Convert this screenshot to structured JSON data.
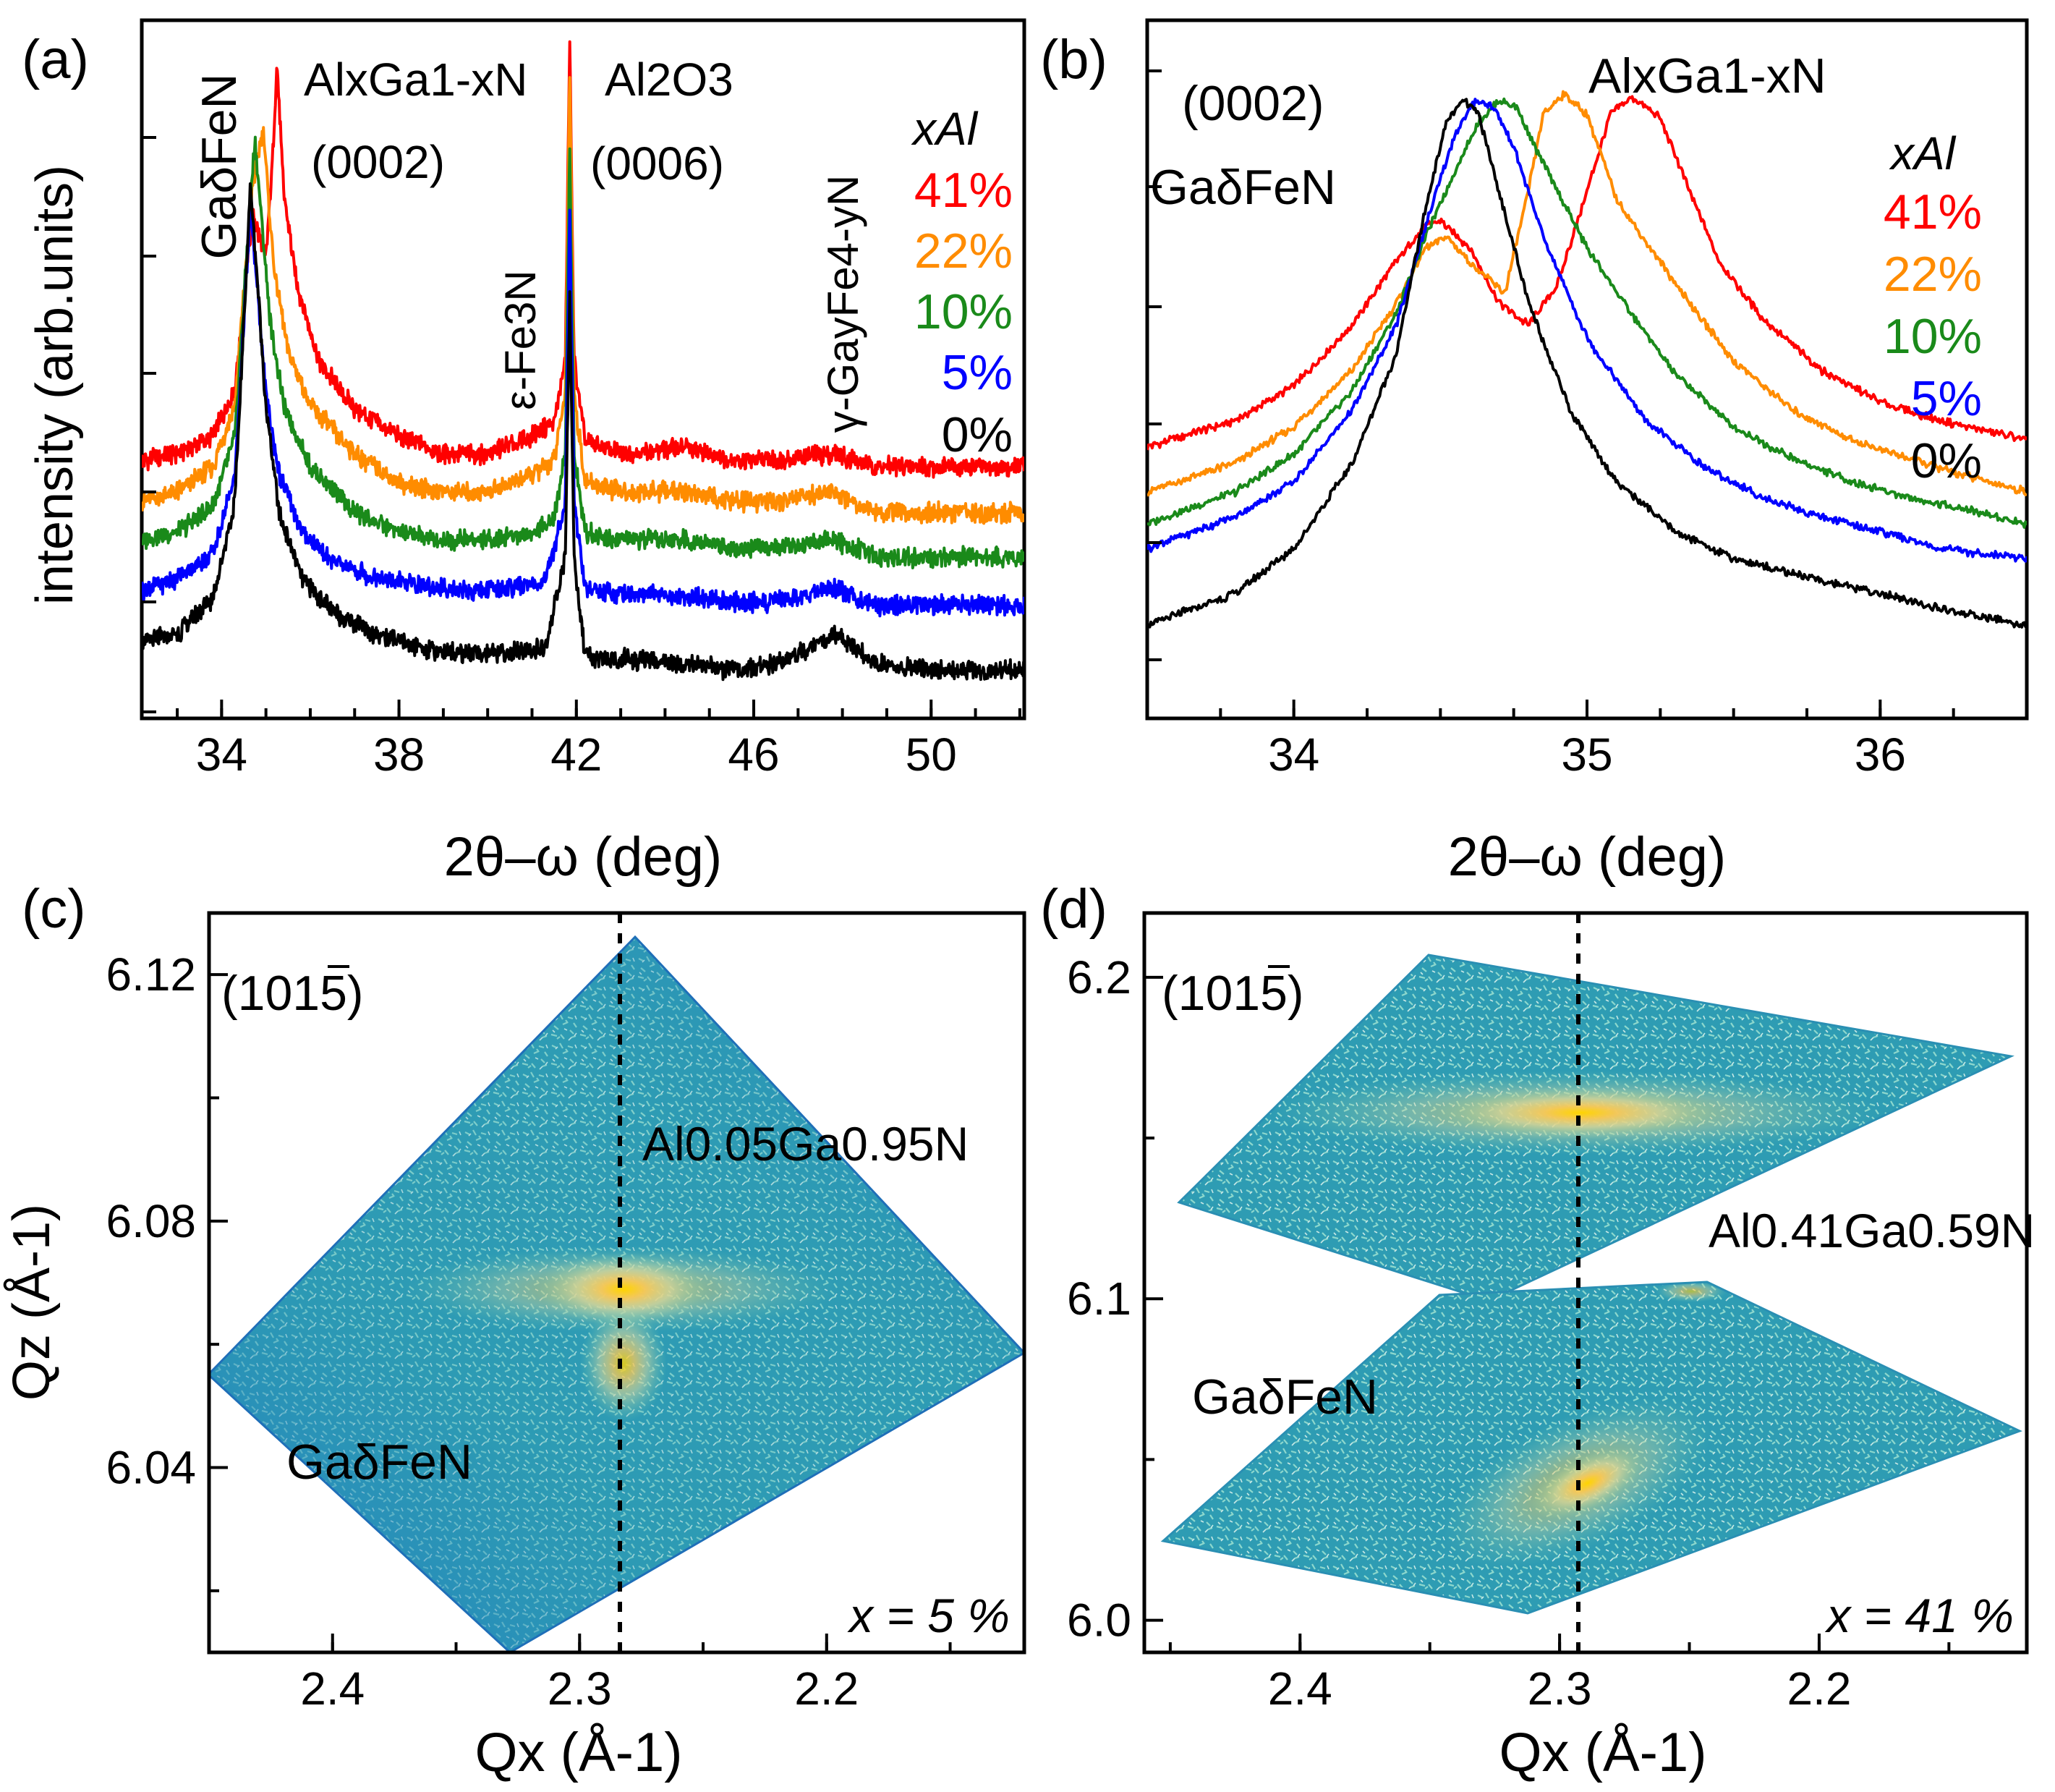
{
  "figure": {
    "panels": [
      {
        "label": "(a)",
        "peak_labels": [
          "GaδFeN",
          "AlxGa1-xN",
          "(0002)",
          "Al2O3",
          "(0006)",
          "ε-Fe3N",
          "γ-GayFe4-yN"
        ],
        "legend_title": "xAl",
        "legend_entries": [
          "41%",
          "22%",
          "10%",
          "5%",
          "0%"
        ]
      },
      {
        "label": "(b)",
        "peak_labels": [
          "(0002)",
          "GaδFeN",
          "AlxGa1-xN"
        ],
        "legend_title": "xAl",
        "legend_entries": [
          "41%",
          "22%",
          "10%",
          "5%",
          "0%"
        ]
      },
      {
        "label": "(c)",
        "peak_labels": [
          "(1015)",
          "Al0.05Ga0.95N",
          "GaδFeN"
        ],
        "composition": "x = 5 %"
      },
      {
        "label": "(d)",
        "peak_labels": [
          "(1015)",
          "Al0.41Ga0.59N",
          "GaδFeN"
        ],
        "composition": "x = 41 %"
      }
    ]
  },
  "chart_data": [
    {
      "id": "a",
      "type": "line",
      "xlabel": "2θ–ω (deg)",
      "ylabel": "intensity (arb.units)",
      "xlim": [
        32.2,
        52.1
      ],
      "xticks": [
        34,
        38,
        42,
        46,
        50
      ],
      "yscale": "log",
      "yticks_labeled": false,
      "series": [
        {
          "name": "41%",
          "color": "#ff0000",
          "x": [
            32.2,
            33.0,
            33.8,
            34.3,
            34.55,
            34.7,
            34.85,
            35.0,
            35.15,
            35.25,
            35.4,
            35.7,
            36.2,
            37.0,
            38.0,
            39.0,
            40.0,
            41.0,
            41.5,
            41.75,
            41.85,
            41.95,
            42.2,
            43.0,
            44.5,
            45.5,
            46.5,
            47.8,
            48.8,
            50.0,
            52.1
          ],
          "y": [
            14,
            15,
            18,
            30,
            100,
            190,
            150,
            120,
            340,
            950,
            240,
            90,
            40,
            24,
            18,
            15,
            15,
            18,
            21,
            40,
            1200,
            40,
            17,
            15,
            16,
            14,
            14,
            15,
            13,
            13,
            13
          ]
        },
        {
          "name": "22%",
          "color": "#ff8c00",
          "x": [
            32.2,
            33.0,
            33.8,
            34.3,
            34.55,
            34.7,
            34.85,
            34.95,
            35.05,
            35.2,
            35.5,
            36.0,
            37.0,
            38.0,
            39.0,
            40.0,
            41.0,
            41.5,
            41.75,
            41.85,
            41.95,
            42.2,
            43.0,
            44.5,
            45.5,
            46.5,
            47.8,
            48.8,
            50.0,
            52.1
          ],
          "y": [
            9,
            10,
            13,
            25,
            110,
            260,
            380,
            480,
            230,
            100,
            45,
            25,
            15,
            11,
            10,
            10,
            12,
            14,
            28,
            900,
            28,
            11,
            10,
            10,
            9,
            9,
            10,
            8,
            8,
            8
          ]
        },
        {
          "name": "10%",
          "color": "#1a8a1a",
          "x": [
            32.2,
            33.0,
            33.8,
            34.3,
            34.55,
            34.75,
            34.9,
            35.1,
            35.4,
            36.0,
            37.0,
            38.0,
            39.0,
            40.0,
            41.0,
            41.5,
            41.75,
            41.85,
            41.95,
            42.2,
            43.0,
            44.5,
            45.5,
            46.5,
            47.8,
            48.8,
            50.0,
            52.1
          ],
          "y": [
            6,
            6.5,
            8.5,
            18,
            110,
            420,
            180,
            60,
            25,
            13,
            8,
            6.5,
            6,
            6,
            6.5,
            7.5,
            15,
            420,
            15,
            6.5,
            6,
            6,
            5.5,
            5.5,
            6,
            5,
            5,
            5
          ]
        },
        {
          "name": "5%",
          "color": "#0000ff",
          "x": [
            32.2,
            33.0,
            33.8,
            34.3,
            34.5,
            34.65,
            34.8,
            35.0,
            35.3,
            35.8,
            36.5,
            37.5,
            38.5,
            39.5,
            40.5,
            41.3,
            41.75,
            41.85,
            41.95,
            42.2,
            43.0,
            44.5,
            45.5,
            46.5,
            47.8,
            48.8,
            50.0,
            52.1
          ],
          "y": [
            3.5,
            4,
            5.2,
            12,
            60,
            200,
            90,
            28,
            12,
            6.5,
            4.8,
            4,
            3.7,
            3.5,
            3.6,
            3.8,
            9,
            200,
            9,
            3.6,
            3.4,
            3.3,
            3.1,
            3.1,
            3.6,
            3,
            3,
            3
          ]
        },
        {
          "name": "0%",
          "color": "#000000",
          "x": [
            32.2,
            33.0,
            33.8,
            34.3,
            34.5,
            34.65,
            34.8,
            35.0,
            35.3,
            35.8,
            36.5,
            37.5,
            38.5,
            39.5,
            40.5,
            41.3,
            41.75,
            41.85,
            41.95,
            42.2,
            43.0,
            44.5,
            45.5,
            46.5,
            47.8,
            48.8,
            50.0,
            52.1
          ],
          "y": [
            2,
            2.2,
            3.2,
            9,
            60,
            260,
            100,
            25,
            8,
            4,
            2.8,
            2.2,
            1.9,
            1.8,
            1.8,
            1.9,
            5,
            80,
            5,
            1.7,
            1.7,
            1.6,
            1.5,
            1.6,
            2.2,
            1.6,
            1.5,
            1.5
          ]
        }
      ]
    },
    {
      "id": "b",
      "type": "line",
      "xlabel": "2θ–ω (deg)",
      "xlim": [
        33.5,
        36.5
      ],
      "xticks": [
        34,
        35,
        36
      ],
      "yscale": "log",
      "yticks_labeled": false,
      "series": [
        {
          "name": "41%",
          "color": "#ff0000",
          "x": [
            33.5,
            33.8,
            34.0,
            34.2,
            34.35,
            34.45,
            34.5,
            34.6,
            34.7,
            34.8,
            34.9,
            35.0,
            35.08,
            35.15,
            35.25,
            35.35,
            35.45,
            35.6,
            35.8,
            36.0,
            36.2,
            36.5
          ],
          "y": [
            30,
            38,
            52,
            90,
            160,
            220,
            230,
            180,
            110,
            90,
            130,
            300,
            600,
            700,
            580,
            300,
            160,
            95,
            60,
            45,
            38,
            32
          ]
        },
        {
          "name": "22%",
          "color": "#ff8c00",
          "x": [
            33.5,
            33.8,
            34.0,
            34.2,
            34.35,
            34.45,
            34.52,
            34.62,
            34.72,
            34.8,
            34.85,
            34.92,
            35.0,
            35.1,
            35.2,
            35.35,
            35.5,
            35.7,
            35.9,
            36.1,
            36.3,
            36.5
          ],
          "y": [
            20,
            26,
            36,
            60,
            110,
            180,
            200,
            150,
            120,
            300,
            600,
            720,
            600,
            280,
            190,
            110,
            65,
            42,
            32,
            27,
            23,
            20
          ]
        },
        {
          "name": "10%",
          "color": "#1a8a1a",
          "x": [
            33.5,
            33.8,
            34.0,
            34.2,
            34.35,
            34.45,
            34.55,
            34.63,
            34.7,
            34.76,
            34.82,
            34.9,
            35.0,
            35.15,
            35.3,
            35.5,
            35.7,
            35.9,
            36.1,
            36.3,
            36.5
          ],
          "y": [
            15,
            20,
            28,
            50,
            100,
            200,
            360,
            560,
            680,
            640,
            450,
            300,
            180,
            100,
            58,
            36,
            27,
            22,
            19,
            17,
            15
          ]
        },
        {
          "name": "5%",
          "color": "#0000ff",
          "x": [
            33.5,
            33.8,
            34.0,
            34.2,
            34.35,
            34.45,
            34.55,
            34.62,
            34.68,
            34.75,
            34.85,
            35.0,
            35.2,
            35.4,
            35.6,
            35.8,
            36.0,
            36.2,
            36.5
          ],
          "y": [
            12,
            16,
            22,
            42,
            90,
            220,
            500,
            680,
            640,
            450,
            200,
            80,
            38,
            25,
            19,
            16,
            14,
            12,
            11
          ]
        },
        {
          "name": "0%",
          "color": "#000000",
          "x": [
            33.5,
            33.8,
            34.0,
            34.2,
            34.35,
            34.45,
            34.52,
            34.58,
            34.63,
            34.7,
            34.8,
            34.95,
            35.1,
            35.3,
            35.5,
            35.8,
            36.0,
            36.2,
            36.5
          ],
          "y": [
            6,
            8,
            12,
            26,
            70,
            260,
            560,
            680,
            600,
            300,
            110,
            40,
            22,
            14,
            11,
            9,
            8,
            7,
            6
          ]
        }
      ]
    },
    {
      "id": "c",
      "type": "heatmap",
      "xlabel": "Qx (Å-1)",
      "ylabel": "Qz (Å-1)",
      "xlim": [
        2.45,
        2.12
      ],
      "ylim": [
        6.01,
        6.13
      ],
      "xticks": [
        2.4,
        2.3,
        2.2
      ],
      "yticks": [
        6.04,
        6.08,
        6.12
      ],
      "reference_line_qx": 2.275,
      "peaks": [
        {
          "label": "Al0.05Ga0.95N",
          "qx": 2.275,
          "qz": 6.07,
          "intensity": 1.0
        },
        {
          "label": "GaδFeN",
          "qx": 2.277,
          "qz": 6.056,
          "intensity": 0.7
        }
      ]
    },
    {
      "id": "d",
      "type": "heatmap",
      "xlabel": "Qx (Å-1)",
      "xlim": [
        2.46,
        2.12
      ],
      "ylim": [
        5.99,
        6.22
      ],
      "xticks": [
        2.4,
        2.3,
        2.2
      ],
      "yticks": [
        6.0,
        6.1,
        6.2
      ],
      "reference_line_qx": 2.285,
      "peaks": [
        {
          "label": "Al0.41Ga0.59N",
          "qx": 2.285,
          "qz": 6.163,
          "intensity": 1.0
        },
        {
          "label": "GaδFeN",
          "qx": 2.285,
          "qz": 6.043,
          "intensity": 0.6
        }
      ]
    }
  ]
}
